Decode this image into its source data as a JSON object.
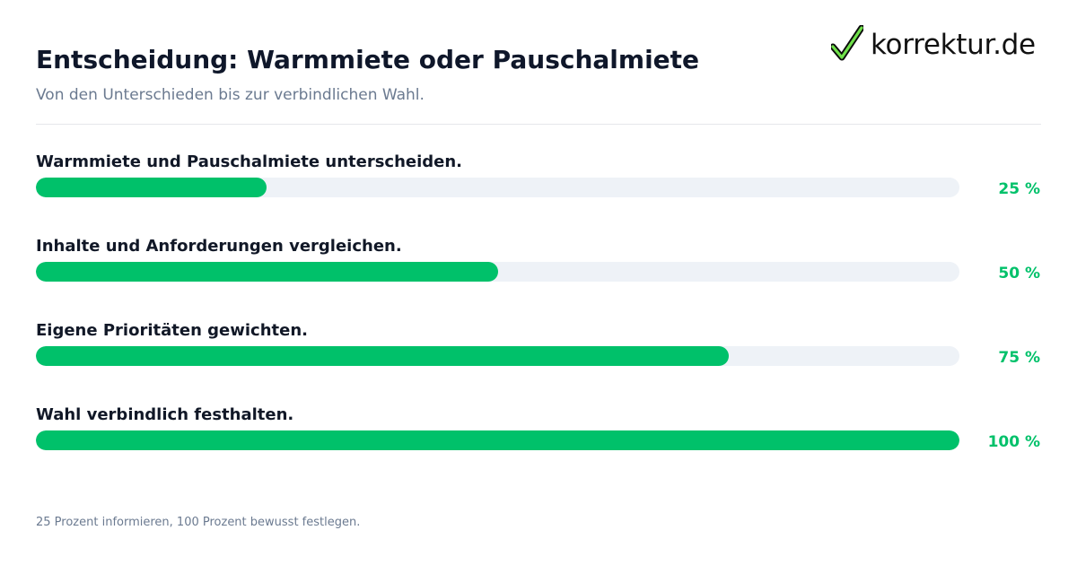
{
  "header": {
    "title": "Entscheidung: Warmmiete oder Pauschalmiete",
    "subtitle": "Von den Unterschieden bis zur verbindlichen Wahl."
  },
  "logo": {
    "text": "korrektur.de",
    "icon": "checkmark-icon",
    "color": "#00c16a"
  },
  "chart_data": {
    "type": "bar",
    "orientation": "horizontal",
    "title": "Entscheidung: Warmmiete oder Pauschalmiete",
    "subtitle": "Von den Unterschieden bis zur verbindlichen Wahl.",
    "xlim": [
      0,
      100
    ],
    "grid": false,
    "categories": [
      "Warmmiete und Pauschalmiete unterscheiden.",
      "Inhalte und Anforderungen vergleichen.",
      "Eigene Prioritäten gewichten.",
      "Wahl verbindlich festhalten."
    ],
    "values": [
      25,
      50,
      75,
      100
    ],
    "value_labels": [
      "25 %",
      "50 %",
      "75 %",
      "100 %"
    ],
    "bar_color": "#00c16a",
    "track_color": "#eef2f7"
  },
  "footer": {
    "note": "25 Prozent informieren, 100 Prozent bewusst festlegen."
  }
}
